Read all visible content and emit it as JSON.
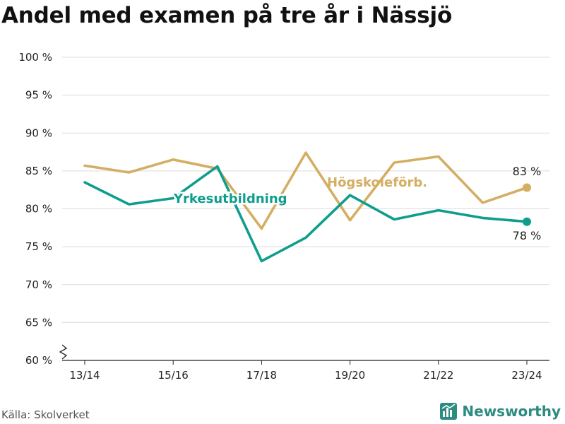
{
  "title": "Andel med examen på tre år i Nässjö",
  "source": "Källa: Skolverket",
  "brand": {
    "name": "Newsworthy",
    "icon": "bar-chart-icon"
  },
  "colors": {
    "yrkes": "#0f9e8d",
    "hogskole": "#d4ae62",
    "brand": "#2e8b80"
  },
  "chart_data": {
    "type": "line",
    "title": "Andel med examen på tre år i Nässjö",
    "xlabel": "",
    "ylabel": "",
    "x": [
      "13/14",
      "14/15",
      "15/16",
      "16/17",
      "17/18",
      "18/19",
      "19/20",
      "20/21",
      "21/22",
      "22/23",
      "23/24"
    ],
    "x_tick_labels": [
      "13/14",
      "15/16",
      "17/18",
      "19/20",
      "21/22",
      "23/24"
    ],
    "y_tick_labels": [
      "60 %",
      "65 %",
      "70 %",
      "75 %",
      "80 %",
      "85 %",
      "90 %",
      "95 %",
      "100 %"
    ],
    "ylim": [
      60,
      100
    ],
    "y_ticks": [
      60,
      65,
      70,
      75,
      80,
      85,
      90,
      95,
      100
    ],
    "grid": true,
    "legend": "inline",
    "series": [
      {
        "name": "Högskoleförb.",
        "values": [
          85.7,
          84.8,
          86.5,
          85.3,
          77.4,
          87.4,
          78.5,
          86.1,
          86.9,
          80.8,
          82.8
        ],
        "end_label": "83 %"
      },
      {
        "name": "Yrkesutbildning",
        "values": [
          83.5,
          80.6,
          81.4,
          85.6,
          73.1,
          76.2,
          81.8,
          78.6,
          79.8,
          78.8,
          78.3
        ],
        "end_label": "78 %"
      }
    ]
  }
}
